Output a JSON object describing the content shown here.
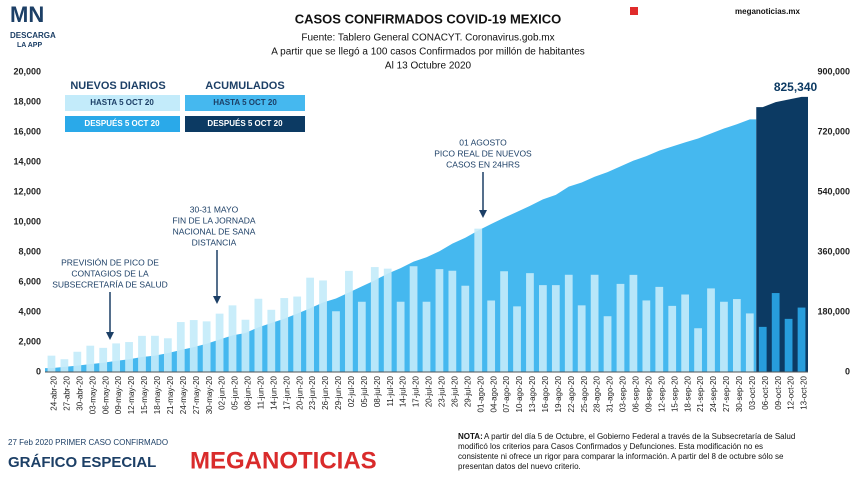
{
  "header": {
    "logo": "MN",
    "logo_sub1": "DESCARGA",
    "logo_sub2": "LA APP",
    "site": "meganoticias.mx"
  },
  "chart_data": {
    "type": "bar-area",
    "title": "CASOS CONFIRMADOS COVID-19 MEXICO",
    "subtitles": [
      "Fuente: Tablero General CONACYT. Coronavirus.gob.mx",
      "A partir que se llegó a 100 casos Confirmados por millón de habitantes",
      "Al 13 Octubre 2020"
    ],
    "categories": [
      "24-abr-20",
      "27-abr-20",
      "30-abr-20",
      "03-may-20",
      "06-may-20",
      "09-may-20",
      "12-may-20",
      "15-may-20",
      "18-may-20",
      "21-may-20",
      "24-may-20",
      "27-may-20",
      "30-may-20",
      "02-jun-20",
      "05-jun-20",
      "08-jun-20",
      "11-jun-20",
      "14-jun-20",
      "17-jun-20",
      "20-jun-20",
      "23-jun-20",
      "26-jun-20",
      "29-jun-20",
      "02-jul-20",
      "05-jul-20",
      "08-jul-20",
      "11-jul-20",
      "14-jul-20",
      "17-jul-20",
      "20-jul-20",
      "23-jul-20",
      "26-jul-20",
      "29-jul-20",
      "01-ago-20",
      "04-ago-20",
      "07-ago-20",
      "10-ago-20",
      "13-ago-20",
      "16-ago-20",
      "19-ago-20",
      "22-ago-20",
      "25-ago-20",
      "28-ago-20",
      "31-ago-20",
      "03-sep-20",
      "06-sep-20",
      "09-sep-20",
      "12-sep-20",
      "15-sep-20",
      "18-sep-20",
      "21-sep-20",
      "24-sep-20",
      "27-sep-20",
      "30-sep-20",
      "03-oct-20",
      "06-oct-20",
      "09-oct-20",
      "12-oct-20",
      "13-oct-20"
    ],
    "color_change_at": "06-oct-20",
    "series": [
      {
        "color": "#c3ebfa",
        "color_after": "#2aa9e9",
        "values": [
          1089,
          852,
          1349,
          1754,
          1609,
          1906,
          1997,
          2409,
          2414,
          2248,
          3329,
          3463,
          3377,
          3891,
          4442,
          3484,
          4883,
          4147,
          4930,
          5030,
          6288,
          6104,
          4050,
          6741,
          4683,
          6995,
          6891,
          4685,
          7051,
          4685,
          6859,
          6751,
          5752,
          9556,
          4767,
          6717,
          4376,
          6590,
          5792,
          5792,
          6482,
          4444,
          6482,
          3719,
          5874,
          6476,
          4771,
          5674,
          4408,
          5167,
          2917,
          5573,
          4683,
          4863,
          3906,
          3008,
          5263,
          3542,
          4295
        ]
      },
      {
        "color": "#45b8ef",
        "color_after": "#0c3a63",
        "axis": "y2",
        "values": [
          11633,
          15529,
          19224,
          23471,
          27634,
          33460,
          38324,
          45032,
          49219,
          56594,
          65856,
          74560,
          84627,
          97326,
          110026,
          117103,
          133974,
          146837,
          159793,
          175202,
          191410,
          208392,
          220657,
          238511,
          256848,
          275003,
          295268,
          311486,
          331298,
          344224,
          362274,
          385036,
          402697,
          424637,
          443813,
          462690,
          480278,
          498380,
          517714,
          531239,
          556216,
          568621,
          585738,
          599560,
          616894,
          634023,
          647507,
          663973,
          676487,
          688954,
          700580,
          715457,
          730317,
          743216,
          757953,
          794608,
          809751,
          817503,
          825340
        ],
        "value_labels": [
          null,
          null,
          null,
          null,
          null,
          null,
          null,
          null,
          null,
          null,
          null,
          null,
          null,
          null,
          null,
          null,
          null,
          null,
          null,
          null,
          null,
          null,
          null,
          null,
          null,
          null,
          null,
          null,
          null,
          null,
          null,
          null,
          null,
          null,
          null,
          null,
          null,
          null,
          null,
          null,
          null,
          null,
          null,
          null,
          null,
          null,
          null,
          null,
          null,
          null,
          null,
          null,
          null,
          null,
          null,
          null,
          null,
          null,
          "825,340"
        ]
      }
    ],
    "ylim": [
      0,
      20000
    ],
    "yticks": [
      0,
      {
        "value": 2000,
        "label": "2,000"
      },
      {
        "value": 4000,
        "label": "4,000"
      },
      {
        "value": 6000,
        "label": "6,000"
      },
      {
        "value": 8000,
        "label": "8,000"
      },
      {
        "value": 10000,
        "label": "10,000"
      },
      {
        "value": 12000,
        "label": "12,000"
      },
      {
        "value": 14000,
        "label": "14,000"
      },
      {
        "value": 16000,
        "label": "16,000"
      },
      {
        "value": 18000,
        "label": "18,000"
      },
      {
        "value": 20000,
        "label": "20,000"
      }
    ],
    "y2lim": [
      0,
      900000
    ],
    "y2ticks": [
      0,
      {
        "value": 180000,
        "label": "180,000"
      },
      {
        "value": 360000,
        "label": "360,000"
      },
      {
        "value": 540000,
        "label": "540,000"
      },
      {
        "value": 720000,
        "label": "720,000"
      },
      {
        "value": 900000,
        "label": "900,000"
      }
    ],
    "grid": false,
    "legend": {
      "groups": [
        "NUEVOS DIARIOS",
        "ACUMULADOS"
      ],
      "entries": [
        "HASTA 5 OCT 20",
        "DESPUÉS 5 OCT 20"
      ]
    },
    "annotations": [
      {
        "lines": [
          "01 AGOSTO",
          "PICO REAL DE NUEVOS",
          "CASOS EN 24HRS"
        ]
      },
      {
        "lines": [
          "30-31 MAYO",
          "FIN DE LA JORNADA",
          "NACIONAL DE SANA",
          "DISTANCIA"
        ]
      },
      {
        "lines": [
          "PREVISIÓN DE PICO DE",
          "CONTAGIOS DE LA",
          "SUBSECRETARÍA DE SALUD"
        ]
      }
    ]
  },
  "footer": {
    "first_case": "27 Feb 2020 PRIMER CASO CONFIRMADO",
    "special": "GRÁFICO ESPECIAL",
    "brand": "MEGANOTICIAS",
    "note_label": "NOTA:",
    "note_lines": [
      "A partir del día 5 de Octubre, el Gobierno Federal a través de la Subsecretaría de Salud",
      "modificó los criterios para Casos Confirmados y Defunciones. Esta modificación no es",
      "consistente ni ofrece un rigor para comparar la información. A partir del 8 de octubre sólo se",
      "presentan datos del nuevo criterio."
    ]
  }
}
